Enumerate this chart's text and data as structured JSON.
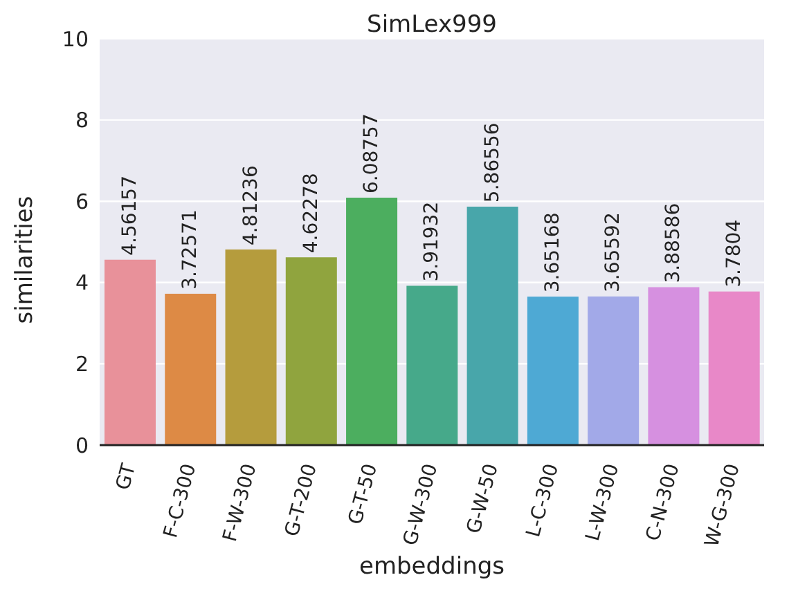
{
  "chart_data": {
    "type": "bar",
    "title": "SimLex999",
    "xlabel": "embeddings",
    "ylabel": "similarities",
    "categories": [
      "GT",
      "F-C-300",
      "F-W-300",
      "G-T-200",
      "G-T-50",
      "G-W-300",
      "G-W-50",
      "L-C-300",
      "L-W-300",
      "C-N-300",
      "W-G-300"
    ],
    "values": [
      4.56157,
      3.72571,
      4.81236,
      4.62278,
      6.08757,
      3.91932,
      5.86556,
      3.65168,
      3.65592,
      3.88586,
      3.7804
    ],
    "colors": [
      "#e8919a",
      "#dd8a45",
      "#b59c3d",
      "#90a43e",
      "#4cae5f",
      "#46a98a",
      "#48a6aa",
      "#4ea9d4",
      "#a2a9e8",
      "#d690e0",
      "#e888c8"
    ],
    "ylim": [
      0,
      10
    ],
    "yticks": [
      0,
      2,
      4,
      6,
      8,
      10
    ],
    "grid": "y",
    "data_labels": true
  }
}
